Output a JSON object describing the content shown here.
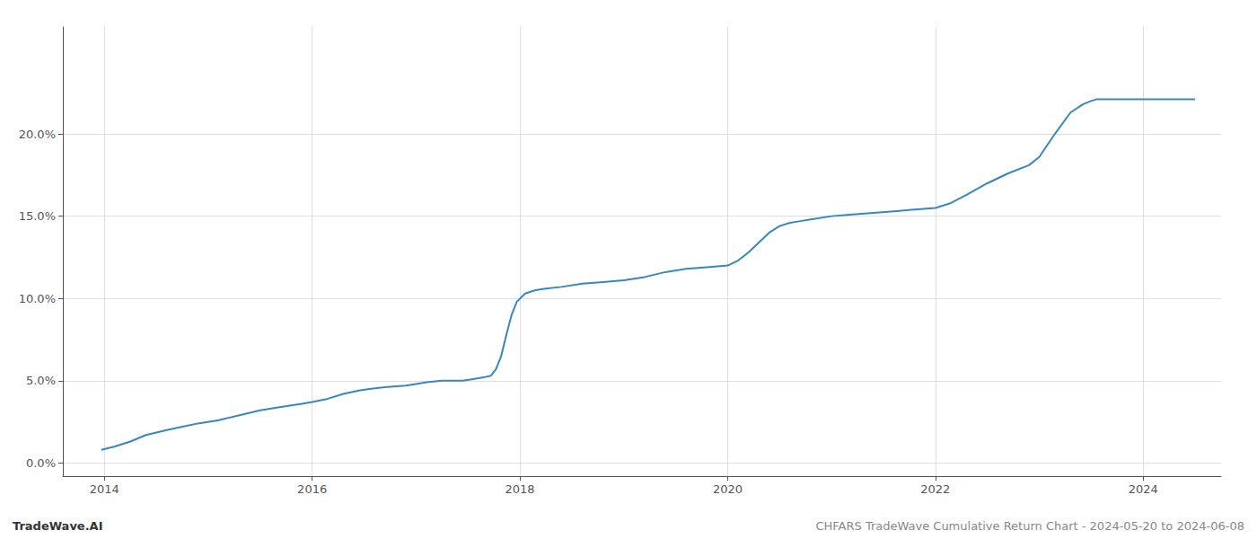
{
  "chart_data": {
    "type": "line",
    "title": "CHFARS TradeWave Cumulative Return Chart - 2024-05-20 to 2024-06-08",
    "annotations": [
      "TradeWave.AI"
    ],
    "color": "#3a87bf",
    "grid": true,
    "x": [
      2013.97,
      2014.1,
      2014.25,
      2014.4,
      2014.6,
      2014.75,
      2014.9,
      2015.1,
      2015.3,
      2015.5,
      2015.7,
      2015.9,
      2016.0,
      2016.15,
      2016.3,
      2016.45,
      2016.55,
      2016.7,
      2016.9,
      2017.0,
      2017.1,
      2017.25,
      2017.45,
      2017.55,
      2017.65,
      2017.72,
      2017.77,
      2017.82,
      2017.87,
      2017.92,
      2017.97,
      2018.05,
      2018.15,
      2018.25,
      2018.4,
      2018.6,
      2018.8,
      2019.0,
      2019.2,
      2019.4,
      2019.6,
      2019.8,
      2020.0,
      2020.1,
      2020.2,
      2020.3,
      2020.4,
      2020.5,
      2020.6,
      2020.7,
      2020.8,
      2021.0,
      2021.2,
      2021.4,
      2021.6,
      2021.8,
      2022.0,
      2022.15,
      2022.3,
      2022.5,
      2022.7,
      2022.9,
      2023.0,
      2023.15,
      2023.3,
      2023.42,
      2023.5,
      2023.55,
      2023.6,
      2023.7,
      2023.8,
      2023.9,
      2024.0,
      2024.1,
      2024.2,
      2024.35,
      2024.5
    ],
    "values": [
      0.008,
      0.01,
      0.013,
      0.017,
      0.02,
      0.022,
      0.024,
      0.026,
      0.029,
      0.032,
      0.034,
      0.036,
      0.037,
      0.039,
      0.042,
      0.044,
      0.045,
      0.046,
      0.047,
      0.048,
      0.049,
      0.05,
      0.05,
      0.051,
      0.052,
      0.053,
      0.057,
      0.065,
      0.078,
      0.09,
      0.098,
      0.103,
      0.105,
      0.106,
      0.107,
      0.109,
      0.11,
      0.111,
      0.113,
      0.116,
      0.118,
      0.119,
      0.12,
      0.123,
      0.128,
      0.134,
      0.14,
      0.144,
      0.146,
      0.147,
      0.148,
      0.15,
      0.151,
      0.152,
      0.153,
      0.154,
      0.155,
      0.158,
      0.163,
      0.17,
      0.176,
      0.181,
      0.186,
      0.2,
      0.213,
      0.218,
      0.22,
      0.221,
      0.221,
      0.221,
      0.221,
      0.221,
      0.221,
      0.221,
      0.221,
      0.221,
      0.221
    ],
    "xlim": [
      2013.6,
      2024.75
    ],
    "xticks": [
      2014,
      2016,
      2018,
      2020,
      2022,
      2024
    ],
    "ylim": [
      -0.008,
      0.265
    ],
    "yticks": [
      {
        "value": 0.0,
        "label": "0.0%"
      },
      {
        "value": 0.05,
        "label": "5.0%"
      },
      {
        "value": 0.1,
        "label": "10.0%"
      },
      {
        "value": 0.15,
        "label": "15.0%"
      },
      {
        "value": 0.2,
        "label": "20.0%"
      }
    ]
  }
}
